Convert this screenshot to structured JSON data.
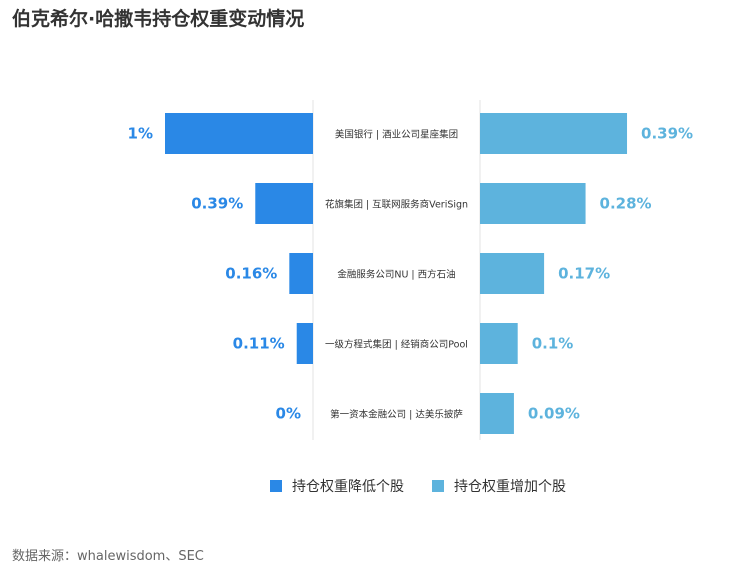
{
  "title": "伯克希尔·哈撒韦持仓权重变动情况",
  "source": "数据来源：whalewisdom、SEC",
  "colors": {
    "decrease": "#2a88e6",
    "increase": "#5db3dd"
  },
  "chart_data": {
    "type": "bar",
    "categories": [
      "美国银行 | 酒业公司星座集团",
      "花旗集团 | 互联网服务商VeriSign",
      "金融服务公司NU | 西方石油",
      "一级方程式集团 | 经销商公司Pool",
      "第一资本金融公司 | 达美乐披萨"
    ],
    "series": [
      {
        "name": "持仓权重降低个股",
        "values": [
          1,
          0.39,
          0.16,
          0.11,
          0
        ],
        "labels": [
          "1%",
          "0.39%",
          "0.16%",
          "0.11%",
          "0%"
        ]
      },
      {
        "name": "持仓权重增加个股",
        "values": [
          0.39,
          0.28,
          0.17,
          0.1,
          0.09
        ],
        "labels": [
          "0.39%",
          "0.28%",
          "0.17%",
          "0.1%",
          "0.09%"
        ]
      }
    ],
    "legend_position": "bottom"
  }
}
